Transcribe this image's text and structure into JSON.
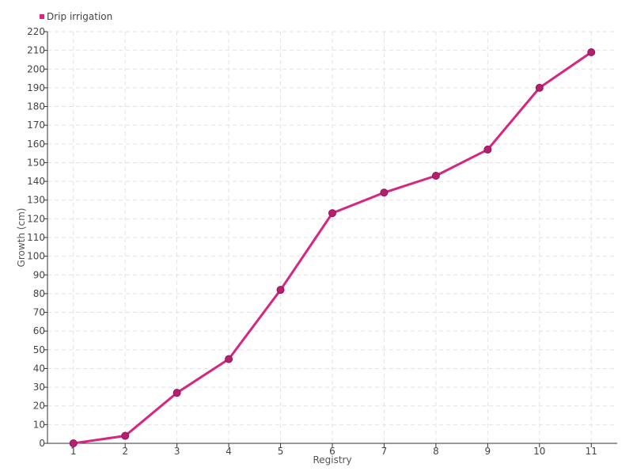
{
  "chart_data": {
    "type": "line",
    "xlabel": "Registry",
    "ylabel": "Growth (cm)",
    "categories": [
      "1",
      "2",
      "3",
      "4",
      "5",
      "6",
      "7",
      "8",
      "9",
      "10",
      "11"
    ],
    "ylim": [
      0,
      220
    ],
    "ytick_step": 10,
    "grid": true,
    "legend_position": "top-left",
    "series": [
      {
        "name": "Drip irrigation",
        "color": "#d6267f",
        "marker_color": "#b5206e",
        "values": [
          0,
          4,
          27,
          45,
          82,
          123,
          134,
          143,
          157,
          190,
          209
        ]
      }
    ]
  }
}
